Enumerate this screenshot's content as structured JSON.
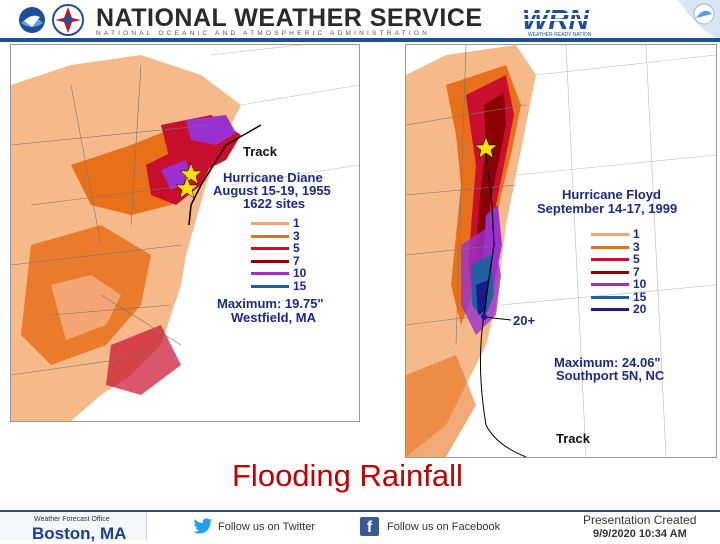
{
  "header": {
    "title": "NATIONAL WEATHER SERVICE",
    "subtitle": "NATIONAL OCEANIC AND ATMOSPHERIC ADMINISTRATION",
    "wrn_logo_text": "WRN",
    "wrn_subtext": "WEATHER-READY NATION",
    "noaa_logo_text": "NOAA",
    "colors": {
      "nws_blue": "#1b4f9c",
      "wrn_blue": "#1b4f9c"
    }
  },
  "left_map": {
    "track_label": "Track",
    "storm_name": "Hurricane Diane",
    "dates": "August 15-19, 1955",
    "sites": "1622 sites",
    "legend": [
      {
        "value": "1",
        "color": "#f4a574"
      },
      {
        "value": "3",
        "color": "#e8701a"
      },
      {
        "value": "5",
        "color": "#c8102e"
      },
      {
        "value": "7",
        "color": "#8b0000"
      },
      {
        "value": "10",
        "color": "#9b30d0"
      },
      {
        "value": "15",
        "color": "#2060a0"
      }
    ],
    "maximum_line": "Maximum:  19.75\"",
    "maximum_location": "Westfield, MA"
  },
  "right_map": {
    "storm_name": "Hurricane Floyd",
    "dates": "September 14-17, 1999",
    "legend": [
      {
        "value": "1",
        "color": "#f4a574"
      },
      {
        "value": "3",
        "color": "#e8701a"
      },
      {
        "value": "5",
        "color": "#c8102e"
      },
      {
        "value": "7",
        "color": "#8b0000"
      },
      {
        "value": "10",
        "color": "#9b30d0"
      },
      {
        "value": "15",
        "color": "#2060a0"
      },
      {
        "value": "20",
        "color": "#1a1a8a"
      }
    ],
    "max_label_20": "20+",
    "maximum_line": "Maximum:  24.06\"",
    "maximum_location": "Southport 5N, NC",
    "track_label": "Track"
  },
  "slide_title": "Flooding Rainfall",
  "footer": {
    "office_small": "Weather Forecast Office",
    "office_big": "Boston, MA",
    "twitter": "Follow us on Twitter",
    "facebook": "Follow us on Facebook",
    "facebook_glyph": "f",
    "presentation_label": "Presentation Created",
    "presentation_date": "9/9/2020 10:34 AM",
    "colors": {
      "twitter_blue": "#1da1f2",
      "facebook_blue": "#3b5998"
    }
  }
}
